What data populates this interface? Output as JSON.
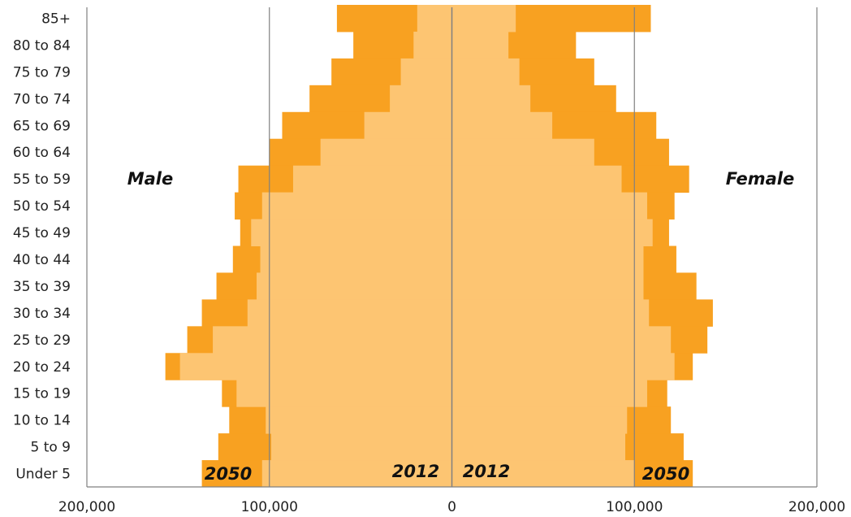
{
  "chart_data": {
    "type": "bar",
    "orientation": "horizontal-pyramid",
    "categories": [
      "85+",
      "80 to 84",
      "75 to 79",
      "70 to 74",
      "65 to 69",
      "60 to 64",
      "55 to 59",
      "50 to 54",
      "45 to 49",
      "40 to 44",
      "35 to 39",
      "30 to 34",
      "25 to 29",
      "20 to 24",
      "15 to 19",
      "10 to 14",
      "5 to 9",
      "Under 5"
    ],
    "series": [
      {
        "name": "2012",
        "side": "Male",
        "values": [
          19000,
          21000,
          28000,
          34000,
          48000,
          72000,
          87000,
          104000,
          110000,
          105000,
          107000,
          112000,
          131000,
          149000,
          118000,
          102000,
          99000,
          104000
        ]
      },
      {
        "name": "2050",
        "side": "Male",
        "values": [
          63000,
          54000,
          66000,
          78000,
          93000,
          100000,
          117000,
          119000,
          116000,
          120000,
          129000,
          137000,
          145000,
          157000,
          126000,
          122000,
          128000,
          137000
        ]
      },
      {
        "name": "2012",
        "side": "Female",
        "values": [
          35000,
          31000,
          37000,
          43000,
          55000,
          78000,
          93000,
          107000,
          110000,
          105000,
          105000,
          108000,
          120000,
          122000,
          107000,
          96000,
          95000,
          100000
        ]
      },
      {
        "name": "2050",
        "side": "Female",
        "values": [
          109000,
          68000,
          78000,
          90000,
          112000,
          119000,
          130000,
          122000,
          119000,
          123000,
          134000,
          143000,
          140000,
          132000,
          118000,
          120000,
          127000,
          132000
        ]
      }
    ],
    "side_labels": {
      "left": "Male",
      "right": "Female"
    },
    "year_labels": {
      "left_outer": "2050",
      "left_inner": "2012",
      "right_inner": "2012",
      "right_outer": "2050"
    },
    "x_ticks": [
      -200000,
      -100000,
      0,
      100000,
      200000
    ],
    "x_tick_labels": [
      "200,000",
      "100,000",
      "0",
      "100,000",
      "200,000"
    ],
    "xlim": [
      -200000,
      200000
    ],
    "grid": true,
    "colors": {
      "2012": "#FDC572",
      "2050": "#F8A121",
      "grid": "#808080",
      "axis": "#808080"
    },
    "legend": "none"
  }
}
